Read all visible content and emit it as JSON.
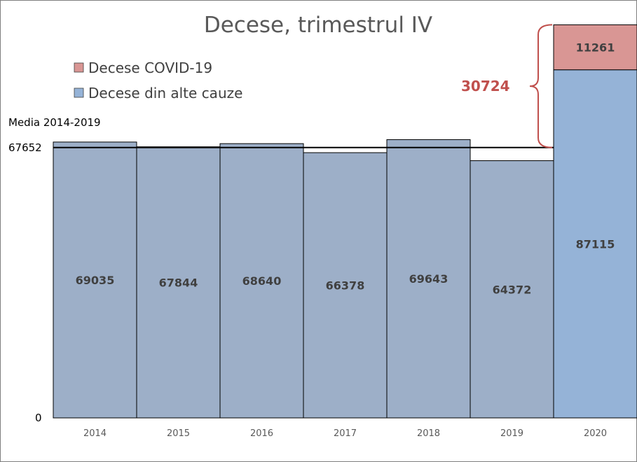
{
  "chart_data": {
    "type": "bar",
    "stacked": true,
    "title": "Decese, trimestrul IV",
    "categories": [
      "2014",
      "2015",
      "2016",
      "2017",
      "2018",
      "2019",
      "2020"
    ],
    "series": [
      {
        "name": "Decese din alte cauze",
        "values": [
          69035,
          67844,
          68640,
          66378,
          69643,
          64372,
          87115
        ]
      },
      {
        "name": "Decese COVID-19",
        "values": [
          0,
          0,
          0,
          0,
          0,
          0,
          11261
        ]
      }
    ],
    "mean_line": {
      "label": "Media 2014-2019",
      "value": 67652
    },
    "excess_annotation": "30724",
    "y_ticks": [
      "0",
      "67652"
    ],
    "ylim": [
      0,
      100376
    ],
    "legend_position": "top-left",
    "grid": false
  },
  "colors": {
    "bar_base": "#9dafc8",
    "bar_2020": "#95b3d7",
    "covid": "#d99694",
    "bar_border": "#000000",
    "mean_line": "#000000",
    "brace": "#c0504d",
    "excess_text": "#c0504d"
  }
}
